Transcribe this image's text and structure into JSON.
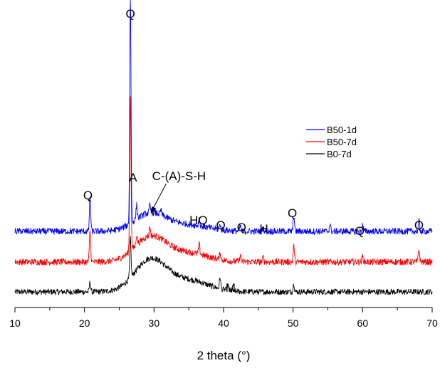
{
  "chart_data": {
    "type": "line",
    "title": "",
    "xlabel": "2 theta (°)",
    "ylabel": "",
    "xlim": [
      10,
      70
    ],
    "xticks": [
      10,
      20,
      30,
      40,
      50,
      60,
      70
    ],
    "y_axis_visible": false,
    "grid": false,
    "legend_position": "top-right",
    "series": [
      {
        "name": "B50-1d",
        "color": "#0000ff",
        "baseline": 325,
        "hump": 25,
        "noise": 4.5,
        "peaks": [
          [
            20.8,
            48
          ],
          [
            26.6,
            320
          ],
          [
            27.5,
            20
          ],
          [
            29.4,
            10
          ],
          [
            31,
            6
          ],
          [
            36.5,
            10
          ],
          [
            39.5,
            8
          ],
          [
            42.4,
            7
          ],
          [
            45.7,
            5
          ],
          [
            50.1,
            22
          ],
          [
            55.3,
            10
          ],
          [
            60,
            9
          ],
          [
            68.1,
            14
          ]
        ]
      },
      {
        "name": "B50-7d",
        "color": "#ff0000",
        "baseline": 368,
        "hump": 35,
        "noise": 4.5,
        "peaks": [
          [
            20.8,
            45
          ],
          [
            26.6,
            220
          ],
          [
            27.5,
            15
          ],
          [
            29.4,
            12
          ],
          [
            36.5,
            14
          ],
          [
            39.5,
            10
          ],
          [
            42.4,
            9
          ],
          [
            45.7,
            7
          ],
          [
            50.1,
            22
          ],
          [
            60,
            8
          ],
          [
            68.1,
            18
          ]
        ]
      },
      {
        "name": "B0-7d",
        "color": "#000000",
        "baseline": 410,
        "hump": 45,
        "noise": 4,
        "peaks": [
          [
            20.8,
            14
          ],
          [
            26.6,
            55
          ],
          [
            39.5,
            16
          ],
          [
            40.6,
            8
          ],
          [
            50.1,
            12
          ]
        ]
      }
    ],
    "annotations": [
      {
        "text": "Q",
        "x": 26.6,
        "y_series": "B50-1d"
      },
      {
        "text": "A",
        "x": 27.5,
        "y_series": "B50-1d"
      },
      {
        "text": "C-(A)-S-H",
        "x": 29.5,
        "y_series": "B50-1d",
        "arrow": true
      },
      {
        "text": "Q",
        "x": 20.8,
        "y_series": "B50-1d"
      },
      {
        "text": "HQ",
        "x": 36.4,
        "y_series": "B50-1d"
      },
      {
        "text": "Q",
        "x": 39.6,
        "y_series": "B50-1d"
      },
      {
        "text": "Q",
        "x": 42.6,
        "y_series": "B50-1d"
      },
      {
        "text": "H",
        "x": 45.6,
        "y_series": "B50-1d"
      },
      {
        "text": "Q",
        "x": 50.0,
        "y_series": "B50-1d"
      },
      {
        "text": "Q",
        "x": 59.8,
        "y_series": "B50-1d"
      },
      {
        "text": "Q",
        "x": 68.0,
        "y_series": "B50-1d"
      },
      {
        "text": "M",
        "x": 40.8,
        "y_series": "B0-7d"
      }
    ]
  }
}
